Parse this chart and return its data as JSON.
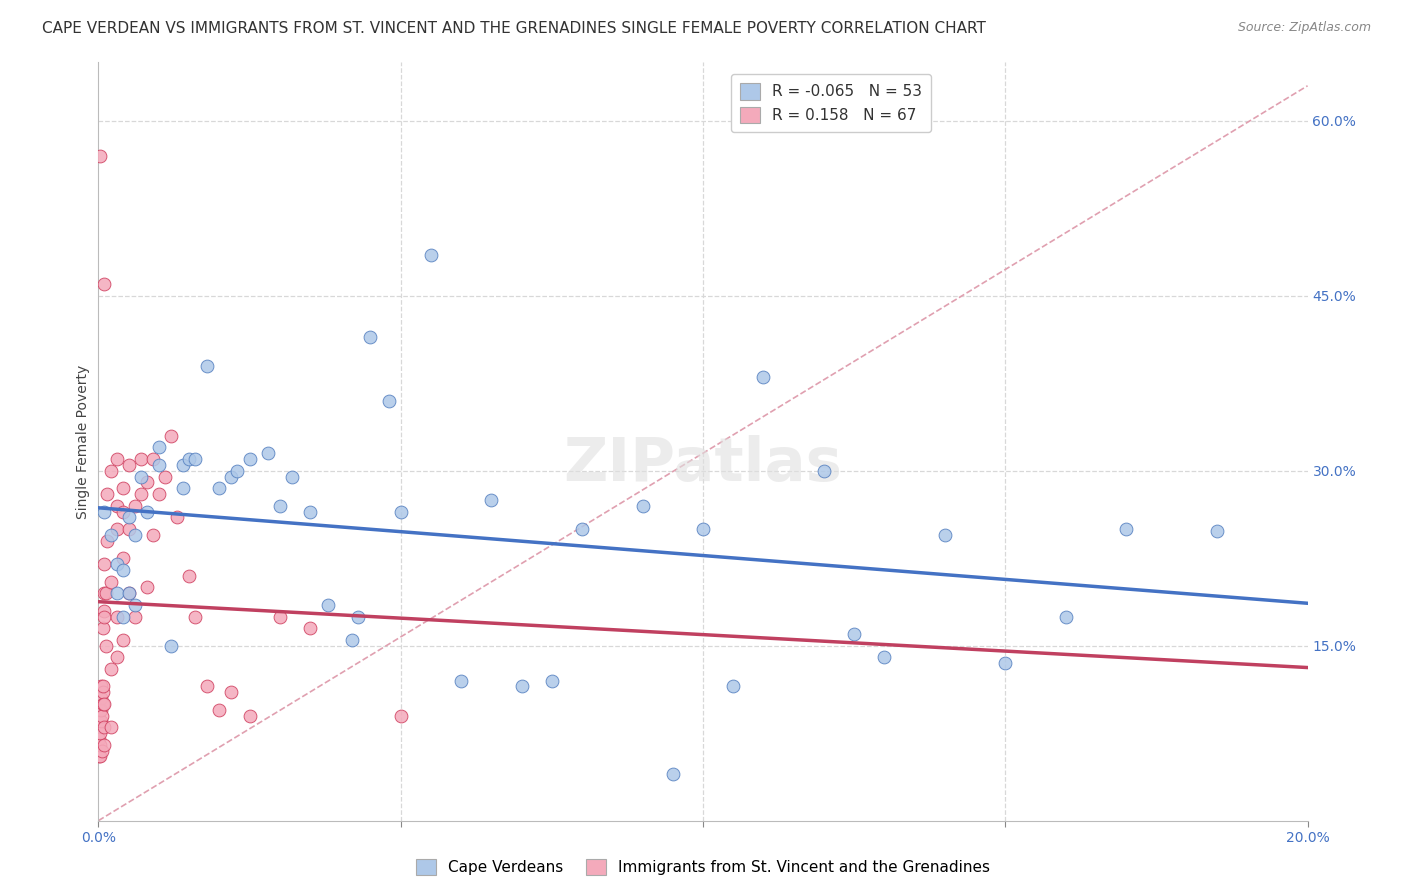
{
  "title": "CAPE VERDEAN VS IMMIGRANTS FROM ST. VINCENT AND THE GRENADINES SINGLE FEMALE POVERTY CORRELATION CHART",
  "source": "Source: ZipAtlas.com",
  "ylabel": "Single Female Poverty",
  "blue_label": "Cape Verdeans",
  "pink_label": "Immigrants from St. Vincent and the Grenadines",
  "blue_R": "-0.065",
  "blue_N": "53",
  "pink_R": "0.158",
  "pink_N": "67",
  "blue_scatter_x": [
    0.001,
    0.002,
    0.003,
    0.003,
    0.004,
    0.004,
    0.005,
    0.005,
    0.006,
    0.006,
    0.007,
    0.008,
    0.01,
    0.01,
    0.012,
    0.014,
    0.014,
    0.015,
    0.016,
    0.018,
    0.02,
    0.022,
    0.023,
    0.025,
    0.028,
    0.03,
    0.032,
    0.035,
    0.038,
    0.042,
    0.043,
    0.045,
    0.048,
    0.05,
    0.055,
    0.06,
    0.065,
    0.07,
    0.075,
    0.08,
    0.09,
    0.095,
    0.1,
    0.105,
    0.11,
    0.12,
    0.125,
    0.13,
    0.14,
    0.15,
    0.16,
    0.17,
    0.185
  ],
  "blue_scatter_y": [
    0.265,
    0.245,
    0.22,
    0.195,
    0.215,
    0.175,
    0.26,
    0.195,
    0.245,
    0.185,
    0.295,
    0.265,
    0.32,
    0.305,
    0.15,
    0.305,
    0.285,
    0.31,
    0.31,
    0.39,
    0.285,
    0.295,
    0.3,
    0.31,
    0.315,
    0.27,
    0.295,
    0.265,
    0.185,
    0.155,
    0.175,
    0.415,
    0.36,
    0.265,
    0.485,
    0.12,
    0.275,
    0.115,
    0.12,
    0.25,
    0.27,
    0.04,
    0.25,
    0.115,
    0.38,
    0.3,
    0.16,
    0.14,
    0.245,
    0.135,
    0.175,
    0.25,
    0.248
  ],
  "pink_scatter_x": [
    0.0001,
    0.0001,
    0.0002,
    0.0002,
    0.0002,
    0.0003,
    0.0003,
    0.0003,
    0.0004,
    0.0004,
    0.0005,
    0.0005,
    0.0006,
    0.0006,
    0.0007,
    0.0007,
    0.0008,
    0.0008,
    0.0009,
    0.0009,
    0.001,
    0.001,
    0.001,
    0.001,
    0.001,
    0.001,
    0.0012,
    0.0013,
    0.0014,
    0.0015,
    0.002,
    0.002,
    0.002,
    0.002,
    0.003,
    0.003,
    0.003,
    0.003,
    0.003,
    0.004,
    0.004,
    0.004,
    0.004,
    0.005,
    0.005,
    0.005,
    0.006,
    0.006,
    0.007,
    0.007,
    0.008,
    0.008,
    0.009,
    0.009,
    0.01,
    0.011,
    0.012,
    0.013,
    0.015,
    0.016,
    0.018,
    0.02,
    0.022,
    0.025,
    0.03,
    0.035,
    0.05
  ],
  "pink_scatter_y": [
    0.055,
    0.07,
    0.085,
    0.095,
    0.57,
    0.055,
    0.065,
    0.075,
    0.085,
    0.095,
    0.105,
    0.115,
    0.06,
    0.09,
    0.1,
    0.11,
    0.115,
    0.165,
    0.46,
    0.18,
    0.065,
    0.08,
    0.1,
    0.175,
    0.195,
    0.22,
    0.15,
    0.195,
    0.24,
    0.28,
    0.08,
    0.13,
    0.205,
    0.3,
    0.14,
    0.175,
    0.25,
    0.27,
    0.31,
    0.155,
    0.225,
    0.265,
    0.285,
    0.195,
    0.25,
    0.305,
    0.175,
    0.27,
    0.28,
    0.31,
    0.2,
    0.29,
    0.245,
    0.31,
    0.28,
    0.295,
    0.33,
    0.26,
    0.21,
    0.175,
    0.115,
    0.095,
    0.11,
    0.09,
    0.175,
    0.165,
    0.09
  ],
  "blue_color": "#aec8e8",
  "pink_color": "#f4aabb",
  "blue_edge_color": "#5580c0",
  "pink_edge_color": "#d04060",
  "blue_line_color": "#4472c4",
  "pink_line_color": "#c04060",
  "diagonal_color": "#e0a0b0",
  "grid_color": "#d8d8d8",
  "bg_color": "#ffffff",
  "title_fontsize": 11,
  "axis_label_fontsize": 10,
  "tick_fontsize": 10,
  "legend_fontsize": 11,
  "source_fontsize": 9
}
